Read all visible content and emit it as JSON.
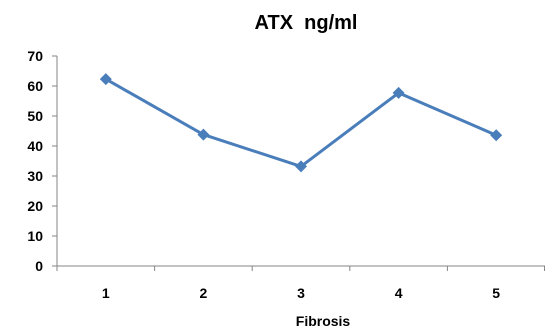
{
  "chart_data": {
    "type": "line",
    "title": "ATX  ng/ml",
    "xlabel": "Fibrosis",
    "ylabel": "",
    "categories": [
      "1",
      "2",
      "3",
      "4",
      "5"
    ],
    "series": [
      {
        "values": [
          62.3,
          43.8,
          33.2,
          57.7,
          43.6
        ]
      }
    ],
    "ylim": [
      0,
      70
    ],
    "yticks": [
      "0",
      "10",
      "20",
      "30",
      "40",
      "50",
      "60",
      "70"
    ],
    "grid": false,
    "legend": "none",
    "colors": {
      "series": "#4a7ebb",
      "axis": "#868686"
    }
  }
}
